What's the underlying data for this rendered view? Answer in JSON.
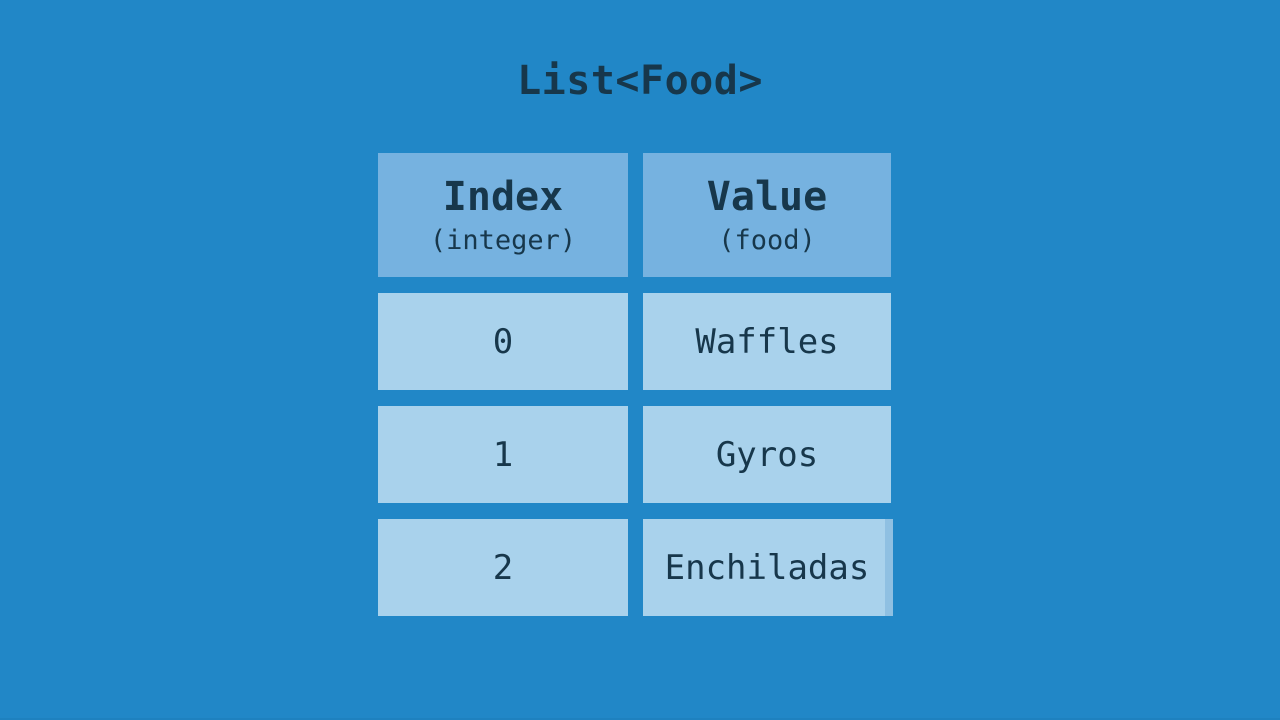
{
  "title": "List<Food>",
  "table": {
    "columns": [
      {
        "label": "Index",
        "sublabel": "(integer)"
      },
      {
        "label": "Value",
        "sublabel": "(food)"
      }
    ],
    "rows": [
      {
        "index": "0",
        "value": "Waffles"
      },
      {
        "index": "1",
        "value": "Gyros"
      },
      {
        "index": "2",
        "value": "Enchiladas"
      }
    ]
  },
  "colors": {
    "background": "#2187c7",
    "header_cell": "#76b2e0",
    "data_cell": "#a9d2ec",
    "text": "#17374b",
    "artifact_strip": "#8fc0e2",
    "bottom_edge": "#1e7cb8"
  }
}
